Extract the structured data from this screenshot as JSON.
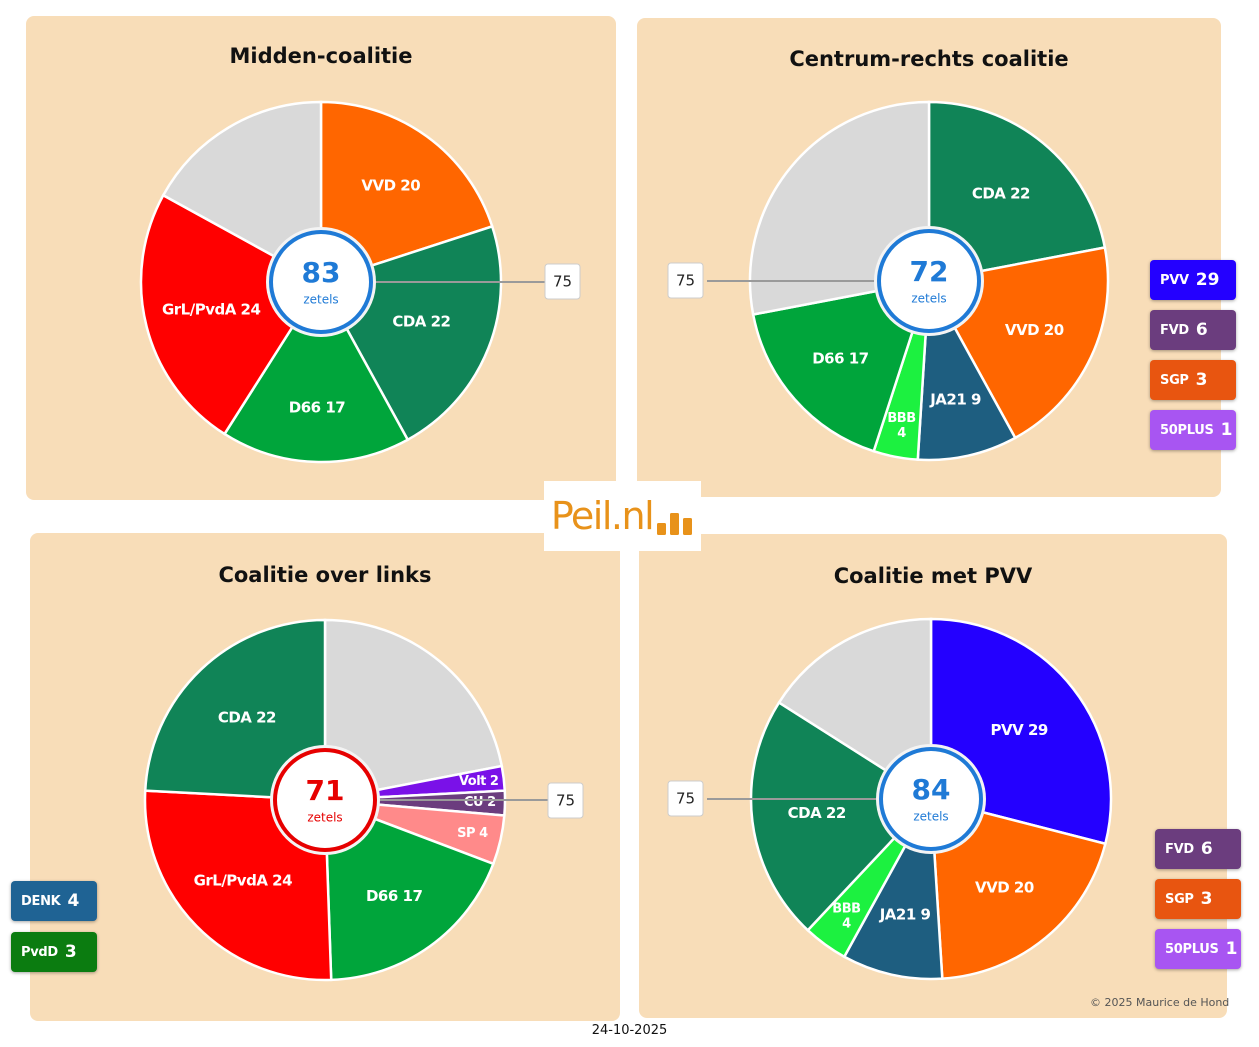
{
  "logo": {
    "text": "Peil.nl"
  },
  "date": "24-10-2025",
  "copyright": "© 2025 Maurice de Hond",
  "center_unit": "zetels",
  "majority_label": "75",
  "chart_data": [
    {
      "type": "pie",
      "title": "Midden-coalitie",
      "total": 83,
      "total_color": "#1f7ad6",
      "majority": 75,
      "majority_side": "right",
      "slices": [
        {
          "name": "VVD",
          "label": "VVD 20",
          "value": 20,
          "color": "#ff6600"
        },
        {
          "name": "CDA",
          "label": "CDA 22",
          "value": 22,
          "color": "#108457"
        },
        {
          "name": "D66",
          "label": "D66 17",
          "value": 17,
          "color": "#00a53b"
        },
        {
          "name": "GrL/PvdA",
          "label": "GrL/PvdA 24",
          "value": 24,
          "color": "#ff0000"
        },
        {
          "name": "rest",
          "label": "",
          "value": 17,
          "color": "#d9d9d9"
        }
      ],
      "side_badges": []
    },
    {
      "type": "pie",
      "title": "Centrum-rechts coalitie",
      "total": 72,
      "total_color": "#1f7ad6",
      "majority": 75,
      "majority_side": "left",
      "slices": [
        {
          "name": "CDA",
          "label": "CDA 22",
          "value": 22,
          "color": "#108457"
        },
        {
          "name": "VVD",
          "label": "VVD 20",
          "value": 20,
          "color": "#ff6600"
        },
        {
          "name": "JA21",
          "label": "JA21 9",
          "value": 9,
          "color": "#1e5e80"
        },
        {
          "name": "BBB",
          "label": "BBB 4",
          "value": 4,
          "color": "#1cf140"
        },
        {
          "name": "D66",
          "label": "D66 17",
          "value": 17,
          "color": "#00a53b"
        },
        {
          "name": "rest",
          "label": "",
          "value": 28,
          "color": "#d9d9d9"
        }
      ],
      "side_badges": [
        {
          "name": "PVV",
          "value": "29",
          "color": "#2400ff"
        },
        {
          "name": "FVD",
          "value": "6",
          "color": "#6b3d7e"
        },
        {
          "name": "SGP",
          "value": "3",
          "color": "#e85510"
        },
        {
          "name": "50PLUS",
          "value": "1",
          "color": "#a855f2"
        }
      ]
    },
    {
      "type": "pie",
      "title": "Coalitie over links",
      "total": 71,
      "total_color": "#e60000",
      "majority": 75,
      "majority_side": "right",
      "slices": [
        {
          "name": "rest",
          "label": "",
          "value": 20,
          "color": "#d9d9d9"
        },
        {
          "name": "Volt",
          "label": "Volt 2",
          "value": 2,
          "color": "#7a11e8"
        },
        {
          "name": "CU",
          "label": "CU 2",
          "value": 2,
          "color": "#6b3d7e"
        },
        {
          "name": "SP",
          "label": "SP 4",
          "value": 4,
          "color": "#ff8a8a"
        },
        {
          "name": "D66",
          "label": "D66 17",
          "value": 17,
          "color": "#00a53b"
        },
        {
          "name": "GrL/PvdA",
          "label": "GrL/PvdA 24",
          "value": 24,
          "color": "#ff0000"
        },
        {
          "name": "CDA",
          "label": "CDA 22",
          "value": 22,
          "color": "#108457"
        }
      ],
      "side_badges": [
        {
          "name": "DENK",
          "value": "4",
          "color": "#1f6394"
        },
        {
          "name": "PvdD",
          "value": "3",
          "color": "#0b7c10"
        }
      ]
    },
    {
      "type": "pie",
      "title": "Coalitie met PVV",
      "total": 84,
      "total_color": "#1f7ad6",
      "majority": 75,
      "majority_side": "left",
      "slices": [
        {
          "name": "PVV",
          "label": "PVV 29",
          "value": 29,
          "color": "#2400ff"
        },
        {
          "name": "VVD",
          "label": "VVD 20",
          "value": 20,
          "color": "#ff6600"
        },
        {
          "name": "JA21",
          "label": "JA21 9",
          "value": 9,
          "color": "#1e5e80"
        },
        {
          "name": "BBB",
          "label": "BBB 4",
          "value": 4,
          "color": "#1cf140"
        },
        {
          "name": "CDA",
          "label": "CDA 22",
          "value": 22,
          "color": "#108457"
        },
        {
          "name": "rest",
          "label": "",
          "value": 16,
          "color": "#d9d9d9"
        }
      ],
      "side_badges": [
        {
          "name": "FVD",
          "value": "6",
          "color": "#6b3d7e"
        },
        {
          "name": "SGP",
          "value": "3",
          "color": "#e85510"
        },
        {
          "name": "50PLUS",
          "value": "1",
          "color": "#a855f2"
        }
      ]
    }
  ]
}
